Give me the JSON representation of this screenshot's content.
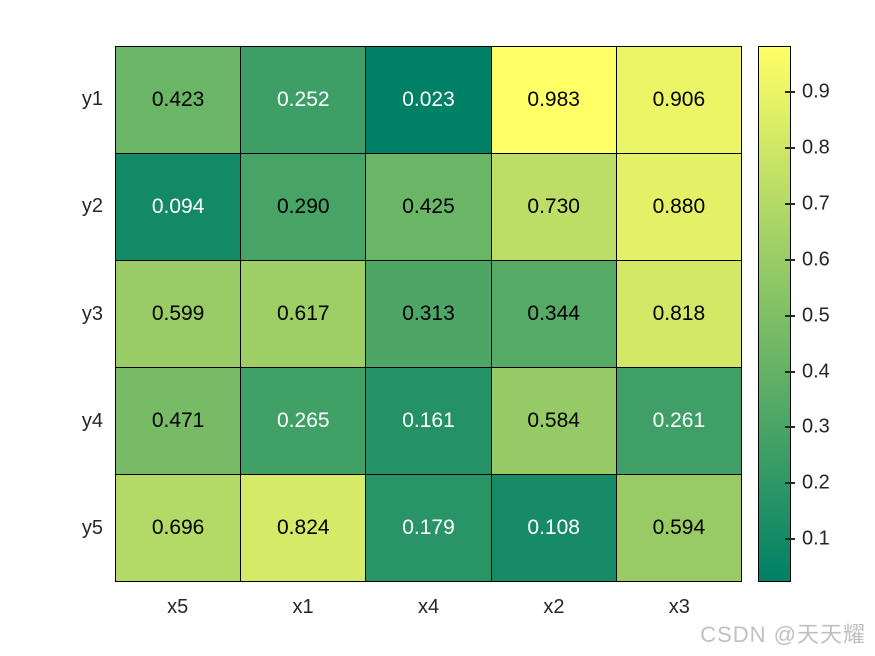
{
  "figure": {
    "background": "#ffffff"
  },
  "watermark": {
    "text": "CSDN @天天耀",
    "color": "#c0c0c0"
  },
  "chart_data": {
    "type": "heatmap",
    "title": "",
    "x_categories": [
      "x5",
      "x1",
      "x4",
      "x2",
      "x3"
    ],
    "y_categories": [
      "y1",
      "y2",
      "y3",
      "y4",
      "y5"
    ],
    "values": [
      [
        0.423,
        0.252,
        0.023,
        0.983,
        0.906
      ],
      [
        0.094,
        0.29,
        0.425,
        0.73,
        0.88
      ],
      [
        0.599,
        0.617,
        0.313,
        0.344,
        0.818
      ],
      [
        0.471,
        0.265,
        0.161,
        0.584,
        0.261
      ],
      [
        0.696,
        0.824,
        0.179,
        0.108,
        0.594
      ]
    ],
    "value_decimals": 3,
    "data_min": 0.023,
    "data_max": 0.983,
    "colormap": "summer",
    "colormap_low_color": "#008066",
    "colormap_high_color": "#ffff66",
    "colorbar": {
      "position": "right",
      "ticks": [
        0.9,
        0.8,
        0.7,
        0.6,
        0.5,
        0.4,
        0.3,
        0.2,
        0.1
      ]
    },
    "grid_line_color": "#000000",
    "axis_text_color": "#262626",
    "cell_text_dark": "#000000",
    "cell_text_light": "#ffffff",
    "white_text_threshold": 0.27,
    "legend_position": "right"
  }
}
